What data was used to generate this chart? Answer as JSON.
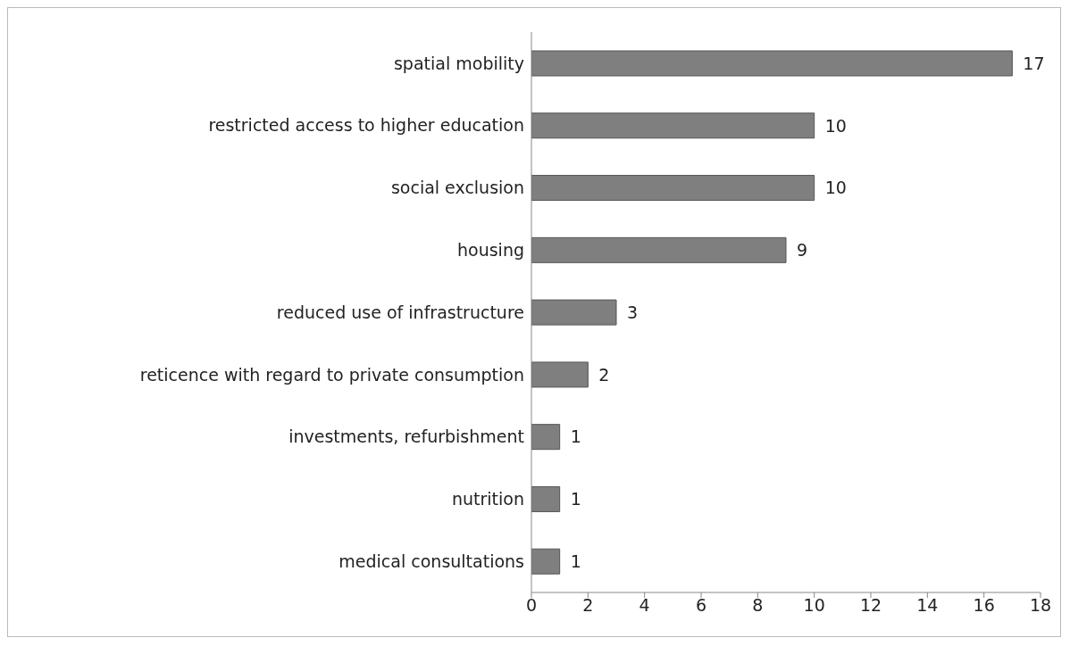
{
  "chart_data": {
    "type": "bar",
    "orientation": "horizontal",
    "categories": [
      "spatial mobility",
      "restricted access to higher education",
      "social exclusion",
      "housing",
      "reduced use of infrastructure",
      "reticence with regard to private consumption",
      "investments, refurbishment",
      "nutrition",
      "medical consultations"
    ],
    "values": [
      17,
      10,
      10,
      9,
      3,
      2,
      1,
      1,
      1
    ],
    "color": "#7f7f7f",
    "xlim": [
      0,
      18
    ],
    "xticks": [
      0,
      2,
      4,
      6,
      8,
      10,
      12,
      14,
      16,
      18
    ],
    "grid": false,
    "data_labels": true
  }
}
